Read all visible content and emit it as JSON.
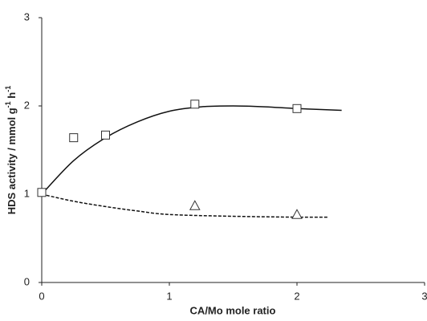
{
  "chart_data": {
    "type": "scatter",
    "xlabel": "CA/Mo mole ratio",
    "ylabel": [
      "HDS activity / mmol g",
      "-1",
      " h",
      "-1"
    ],
    "xlim": [
      0,
      3
    ],
    "ylim": [
      0,
      3
    ],
    "xticks": [
      0,
      1,
      2,
      3
    ],
    "yticks": [
      0,
      1,
      2,
      3
    ],
    "grid": false,
    "series": [
      {
        "marker": "square",
        "color": "#333333",
        "x": [
          0,
          0.25,
          0.5,
          1.2,
          2
        ],
        "values": [
          1.02,
          1.64,
          1.67,
          2.02,
          1.97
        ]
      },
      {
        "marker": "triangle",
        "color": "#333333",
        "x": [
          1.2,
          2
        ],
        "values": [
          0.87,
          0.77
        ]
      }
    ],
    "lines": [
      {
        "dash": false,
        "color": "#111111",
        "x": [
          0,
          0.25,
          0.5,
          0.75,
          1,
          1.25,
          1.5,
          1.75,
          2,
          2.35
        ],
        "values": [
          1.0,
          1.38,
          1.64,
          1.82,
          1.94,
          1.99,
          2.0,
          1.99,
          1.97,
          1.95
        ]
      },
      {
        "dash": true,
        "color": "#111111",
        "x": [
          0,
          0.25,
          0.5,
          0.75,
          1,
          1.5,
          2,
          2.25
        ],
        "values": [
          1.0,
          0.92,
          0.86,
          0.81,
          0.77,
          0.75,
          0.74,
          0.74
        ]
      }
    ]
  }
}
